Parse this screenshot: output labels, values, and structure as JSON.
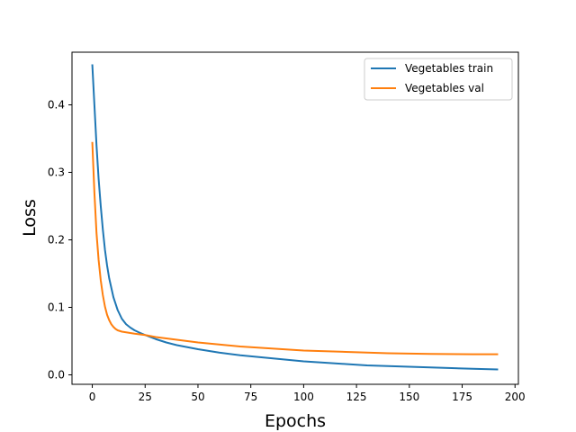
{
  "chart_data": {
    "type": "line",
    "title": "",
    "xlabel": "Epochs",
    "ylabel": "Loss",
    "xlim": [
      -9.6,
      201.6
    ],
    "ylim": [
      -0.014,
      0.478
    ],
    "xticks": [
      0,
      25,
      50,
      75,
      100,
      125,
      150,
      175,
      200
    ],
    "yticks": [
      0.0,
      0.1,
      0.2,
      0.3,
      0.4
    ],
    "ytick_labels": [
      "0.0",
      "0.1",
      "0.2",
      "0.3",
      "0.4"
    ],
    "grid": false,
    "legend_position": "top-right",
    "series": [
      {
        "name": "Vegetables train",
        "color": "#1f77b4",
        "x": [
          0,
          1,
          2,
          3,
          4,
          5,
          6,
          7,
          8,
          10,
          12,
          14,
          16,
          18,
          20,
          22,
          25,
          30,
          35,
          40,
          50,
          60,
          70,
          80,
          90,
          100,
          110,
          120,
          130,
          140,
          150,
          160,
          170,
          180,
          192
        ],
        "y": [
          0.46,
          0.4,
          0.34,
          0.29,
          0.25,
          0.215,
          0.185,
          0.162,
          0.143,
          0.115,
          0.096,
          0.083,
          0.075,
          0.07,
          0.066,
          0.063,
          0.059,
          0.053,
          0.048,
          0.044,
          0.038,
          0.033,
          0.029,
          0.026,
          0.023,
          0.02,
          0.018,
          0.016,
          0.014,
          0.013,
          0.012,
          0.011,
          0.01,
          0.009,
          0.008
        ]
      },
      {
        "name": "Vegetables val",
        "color": "#ff7f0e",
        "x": [
          0,
          1,
          2,
          3,
          4,
          5,
          6,
          7,
          8,
          9,
          10,
          11,
          12,
          14,
          16,
          18,
          20,
          25,
          30,
          40,
          50,
          60,
          70,
          80,
          90,
          100,
          120,
          140,
          160,
          180,
          192
        ],
        "y": [
          0.345,
          0.27,
          0.21,
          0.17,
          0.14,
          0.118,
          0.101,
          0.089,
          0.081,
          0.075,
          0.071,
          0.068,
          0.066,
          0.064,
          0.063,
          0.062,
          0.061,
          0.059,
          0.056,
          0.052,
          0.048,
          0.045,
          0.042,
          0.04,
          0.038,
          0.036,
          0.034,
          0.032,
          0.031,
          0.0305,
          0.0305
        ]
      }
    ]
  }
}
